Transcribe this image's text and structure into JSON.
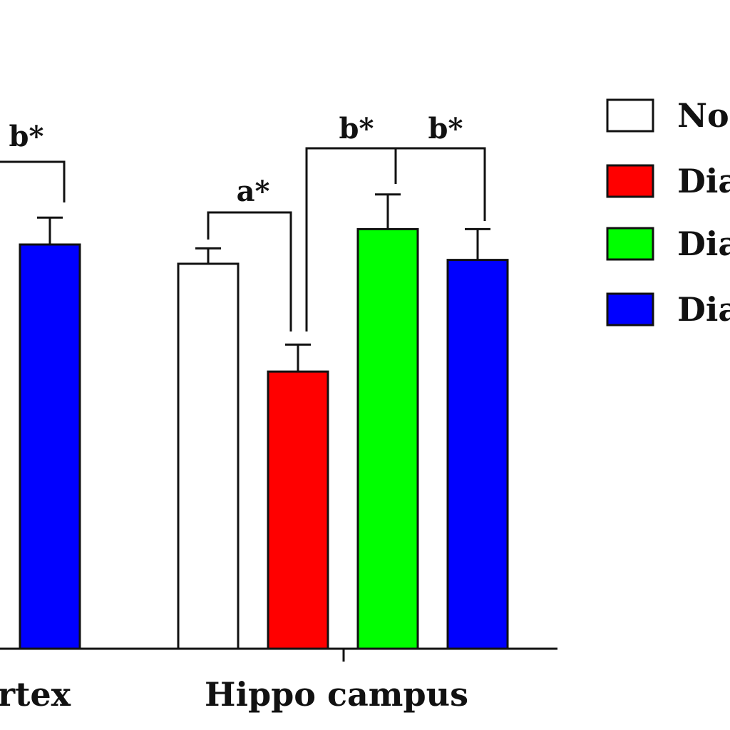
{
  "chart_data": {
    "type": "bar",
    "categories": [
      "rtex",
      "Hippo campus"
    ],
    "series": [
      {
        "name": "No",
        "color": "#ffffff",
        "values": [
          null,
          100
        ],
        "errors": [
          null,
          4
        ]
      },
      {
        "name": "Dia",
        "color": "#ff0000",
        "values": [
          null,
          72
        ],
        "errors": [
          null,
          7
        ]
      },
      {
        "name": "Dia",
        "color": "#00ff00",
        "values": [
          null,
          109
        ],
        "errors": [
          null,
          9
        ]
      },
      {
        "name": "Dia",
        "color": "#0000ff",
        "values": [
          105,
          101
        ],
        "errors": [
          7,
          8
        ]
      }
    ],
    "ylim": [
      0,
      150
    ],
    "legend_position": "top-right",
    "grid": false,
    "significance": [
      {
        "label": "b*",
        "category": "rtex",
        "to_series": 3
      },
      {
        "label": "a*",
        "category": "Hippo campus",
        "from_series": 0,
        "to_series": 1
      },
      {
        "label": "b*",
        "category": "Hippo campus",
        "from_series": 1,
        "to_series": 2
      },
      {
        "label": "b*",
        "category": "Hippo campus",
        "from_series": 1,
        "to_series": 3
      }
    ]
  }
}
